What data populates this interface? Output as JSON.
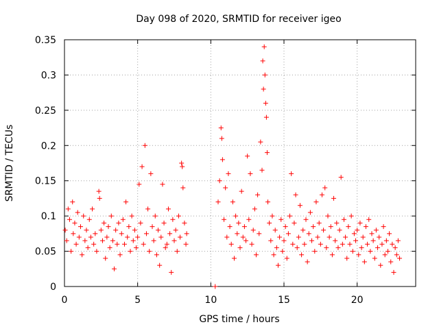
{
  "chart_data": {
    "type": "scatter",
    "title": "Day 098 of 2020, SRMTID for receiver igeo",
    "xlabel": "GPS time / hours",
    "ylabel": "SRMTID / TECUs",
    "xlim": [
      0,
      24
    ],
    "ylim": [
      0,
      0.35
    ],
    "xticks": [
      0,
      5,
      10,
      15,
      20
    ],
    "xtick_labels": [
      "0",
      "5",
      "10",
      "15",
      "20"
    ],
    "yticks": [
      0,
      0.05,
      0.1,
      0.15,
      0.2,
      0.25,
      0.3,
      0.35
    ],
    "ytick_labels": [
      "0",
      "0.05",
      "0.1",
      "0.15",
      "0.2",
      "0.25",
      "0.3",
      "0.35"
    ],
    "grid": true,
    "marker": "+",
    "color": "#ff0000",
    "series": [
      {
        "name": "SRMTID",
        "points": [
          [
            0.05,
            0.08
          ],
          [
            0.15,
            0.065
          ],
          [
            0.25,
            0.11
          ],
          [
            0.35,
            0.095
          ],
          [
            0.45,
            0.05
          ],
          [
            0.55,
            0.12
          ],
          [
            0.6,
            0.075
          ],
          [
            0.7,
            0.09
          ],
          [
            0.8,
            0.06
          ],
          [
            0.9,
            0.105
          ],
          [
            1.0,
            0.07
          ],
          [
            1.1,
            0.085
          ],
          [
            1.2,
            0.045
          ],
          [
            1.3,
            0.1
          ],
          [
            1.4,
            0.065
          ],
          [
            1.5,
            0.08
          ],
          [
            1.6,
            0.055
          ],
          [
            1.7,
            0.095
          ],
          [
            1.8,
            0.07
          ],
          [
            1.9,
            0.11
          ],
          [
            2.0,
            0.06
          ],
          [
            2.1,
            0.075
          ],
          [
            2.2,
            0.05
          ],
          [
            2.35,
            0.135
          ],
          [
            2.4,
            0.125
          ],
          [
            2.5,
            0.08
          ],
          [
            2.6,
            0.065
          ],
          [
            2.7,
            0.09
          ],
          [
            2.8,
            0.04
          ],
          [
            2.9,
            0.07
          ],
          [
            3.0,
            0.085
          ],
          [
            3.1,
            0.055
          ],
          [
            3.2,
            0.1
          ],
          [
            3.3,
            0.065
          ],
          [
            3.4,
            0.025
          ],
          [
            3.5,
            0.08
          ],
          [
            3.6,
            0.06
          ],
          [
            3.7,
            0.09
          ],
          [
            3.8,
            0.045
          ],
          [
            3.9,
            0.075
          ],
          [
            4.0,
            0.095
          ],
          [
            4.1,
            0.06
          ],
          [
            4.2,
            0.12
          ],
          [
            4.3,
            0.07
          ],
          [
            4.4,
            0.085
          ],
          [
            4.5,
            0.05
          ],
          [
            4.6,
            0.1
          ],
          [
            4.7,
            0.065
          ],
          [
            4.8,
            0.08
          ],
          [
            4.9,
            0.055
          ],
          [
            5.0,
            0.07
          ],
          [
            5.1,
            0.145
          ],
          [
            5.2,
            0.09
          ],
          [
            5.3,
            0.17
          ],
          [
            5.4,
            0.06
          ],
          [
            5.5,
            0.2
          ],
          [
            5.6,
            0.075
          ],
          [
            5.7,
            0.11
          ],
          [
            5.8,
            0.05
          ],
          [
            5.9,
            0.16
          ],
          [
            6.0,
            0.085
          ],
          [
            6.1,
            0.065
          ],
          [
            6.2,
            0.1
          ],
          [
            6.3,
            0.045
          ],
          [
            6.4,
            0.08
          ],
          [
            6.5,
            0.03
          ],
          [
            6.6,
            0.07
          ],
          [
            6.7,
            0.145
          ],
          [
            6.8,
            0.09
          ],
          [
            6.9,
            0.055
          ],
          [
            7.0,
            0.06
          ],
          [
            7.1,
            0.11
          ],
          [
            7.2,
            0.075
          ],
          [
            7.3,
            0.02
          ],
          [
            7.4,
            0.095
          ],
          [
            7.5,
            0.065
          ],
          [
            7.6,
            0.08
          ],
          [
            7.7,
            0.05
          ],
          [
            7.8,
            0.1
          ],
          [
            7.9,
            0.07
          ],
          [
            8.0,
            0.175
          ],
          [
            8.05,
            0.17
          ],
          [
            8.1,
            0.14
          ],
          [
            8.2,
            0.09
          ],
          [
            8.3,
            0.06
          ],
          [
            8.35,
            0.075
          ],
          [
            10.3,
            0.0
          ],
          [
            10.5,
            0.12
          ],
          [
            10.6,
            0.15
          ],
          [
            10.7,
            0.225
          ],
          [
            10.75,
            0.21
          ],
          [
            10.8,
            0.18
          ],
          [
            10.9,
            0.095
          ],
          [
            11.0,
            0.14
          ],
          [
            11.1,
            0.07
          ],
          [
            11.2,
            0.16
          ],
          [
            11.3,
            0.085
          ],
          [
            11.4,
            0.06
          ],
          [
            11.5,
            0.12
          ],
          [
            11.6,
            0.04
          ],
          [
            11.7,
            0.1
          ],
          [
            11.8,
            0.075
          ],
          [
            11.9,
            0.09
          ],
          [
            12.0,
            0.055
          ],
          [
            12.1,
            0.135
          ],
          [
            12.2,
            0.07
          ],
          [
            12.3,
            0.085
          ],
          [
            12.4,
            0.065
          ],
          [
            12.5,
            0.185
          ],
          [
            12.6,
            0.095
          ],
          [
            12.7,
            0.16
          ],
          [
            12.8,
            0.06
          ],
          [
            12.9,
            0.08
          ],
          [
            13.0,
            0.11
          ],
          [
            13.1,
            0.045
          ],
          [
            13.2,
            0.13
          ],
          [
            13.3,
            0.075
          ],
          [
            13.4,
            0.205
          ],
          [
            13.5,
            0.165
          ],
          [
            13.55,
            0.32
          ],
          [
            13.6,
            0.28
          ],
          [
            13.65,
            0.34
          ],
          [
            13.7,
            0.3
          ],
          [
            13.75,
            0.26
          ],
          [
            13.8,
            0.24
          ],
          [
            13.85,
            0.19
          ],
          [
            13.9,
            0.12
          ],
          [
            14.0,
            0.09
          ],
          [
            14.1,
            0.065
          ],
          [
            14.2,
            0.1
          ],
          [
            14.3,
            0.045
          ],
          [
            14.4,
            0.08
          ],
          [
            14.5,
            0.055
          ],
          [
            14.6,
            0.03
          ],
          [
            14.7,
            0.07
          ],
          [
            14.8,
            0.095
          ],
          [
            14.9,
            0.05
          ],
          [
            15.0,
            0.065
          ],
          [
            15.1,
            0.085
          ],
          [
            15.2,
            0.04
          ],
          [
            15.3,
            0.075
          ],
          [
            15.4,
            0.1
          ],
          [
            15.5,
            0.16
          ],
          [
            15.6,
            0.06
          ],
          [
            15.7,
            0.09
          ],
          [
            15.8,
            0.13
          ],
          [
            15.9,
            0.055
          ],
          [
            16.0,
            0.07
          ],
          [
            16.1,
            0.115
          ],
          [
            16.2,
            0.045
          ],
          [
            16.3,
            0.08
          ],
          [
            16.4,
            0.06
          ],
          [
            16.5,
            0.095
          ],
          [
            16.6,
            0.035
          ],
          [
            16.7,
            0.075
          ],
          [
            16.8,
            0.105
          ],
          [
            16.9,
            0.065
          ],
          [
            17.0,
            0.085
          ],
          [
            17.1,
            0.05
          ],
          [
            17.2,
            0.12
          ],
          [
            17.3,
            0.07
          ],
          [
            17.4,
            0.09
          ],
          [
            17.5,
            0.06
          ],
          [
            17.6,
            0.13
          ],
          [
            17.7,
            0.08
          ],
          [
            17.8,
            0.14
          ],
          [
            17.9,
            0.055
          ],
          [
            18.0,
            0.1
          ],
          [
            18.1,
            0.07
          ],
          [
            18.2,
            0.085
          ],
          [
            18.3,
            0.045
          ],
          [
            18.4,
            0.125
          ],
          [
            18.5,
            0.065
          ],
          [
            18.6,
            0.09
          ],
          [
            18.7,
            0.055
          ],
          [
            18.8,
            0.08
          ],
          [
            18.9,
            0.155
          ],
          [
            19.0,
            0.06
          ],
          [
            19.1,
            0.095
          ],
          [
            19.2,
            0.07
          ],
          [
            19.3,
            0.04
          ],
          [
            19.4,
            0.085
          ],
          [
            19.5,
            0.06
          ],
          [
            19.6,
            0.1
          ],
          [
            19.7,
            0.05
          ],
          [
            19.8,
            0.075
          ],
          [
            19.9,
            0.065
          ],
          [
            20.0,
            0.08
          ],
          [
            20.1,
            0.045
          ],
          [
            20.2,
            0.09
          ],
          [
            20.3,
            0.055
          ],
          [
            20.4,
            0.07
          ],
          [
            20.5,
            0.035
          ],
          [
            20.6,
            0.085
          ],
          [
            20.7,
            0.06
          ],
          [
            20.8,
            0.095
          ],
          [
            20.9,
            0.05
          ],
          [
            21.0,
            0.075
          ],
          [
            21.1,
            0.065
          ],
          [
            21.2,
            0.04
          ],
          [
            21.3,
            0.08
          ],
          [
            21.4,
            0.055
          ],
          [
            21.5,
            0.07
          ],
          [
            21.6,
            0.03
          ],
          [
            21.7,
            0.06
          ],
          [
            21.8,
            0.085
          ],
          [
            21.9,
            0.045
          ],
          [
            22.0,
            0.065
          ],
          [
            22.1,
            0.05
          ],
          [
            22.2,
            0.075
          ],
          [
            22.3,
            0.035
          ],
          [
            22.4,
            0.06
          ],
          [
            22.5,
            0.02
          ],
          [
            22.6,
            0.055
          ],
          [
            22.7,
            0.045
          ],
          [
            22.8,
            0.065
          ],
          [
            22.9,
            0.04
          ]
        ]
      }
    ]
  }
}
